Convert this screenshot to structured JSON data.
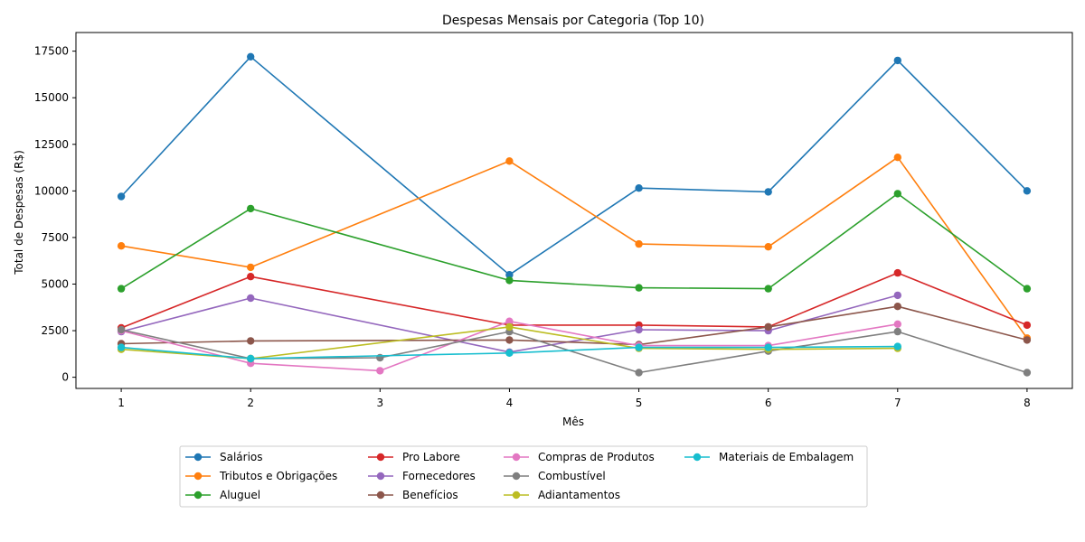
{
  "chart_data": {
    "type": "line",
    "title": "Despesas Mensais por Categoria (Top 10)",
    "xlabel": "Mês",
    "ylabel": "Total de Despesas (R$)",
    "xlim": [
      0.65,
      8.35
    ],
    "ylim": [
      -600,
      18500
    ],
    "xticks": [
      1,
      2,
      3,
      4,
      5,
      6,
      7,
      8
    ],
    "yticks": [
      0,
      2500,
      5000,
      7500,
      10000,
      12500,
      15000,
      17500
    ],
    "grid": false,
    "legend_placement": "below",
    "series": [
      {
        "name": "Salários",
        "color": "#1f77b4",
        "x": [
          1,
          2,
          4,
          5,
          6,
          7,
          8
        ],
        "values": [
          9700,
          17200,
          5500,
          10150,
          9950,
          17000,
          10000
        ]
      },
      {
        "name": "Tributos e Obrigações",
        "color": "#ff7f0e",
        "x": [
          1,
          2,
          4,
          5,
          6,
          7,
          8
        ],
        "values": [
          7050,
          5900,
          11600,
          7150,
          7000,
          11800,
          2100
        ]
      },
      {
        "name": "Aluguel",
        "color": "#2ca02c",
        "x": [
          1,
          2,
          4,
          5,
          6,
          7,
          8
        ],
        "values": [
          4750,
          9050,
          5200,
          4800,
          4750,
          9850,
          4750
        ]
      },
      {
        "name": "Pro Labore",
        "color": "#d62728",
        "x": [
          1,
          2,
          4,
          5,
          6,
          7,
          8
        ],
        "values": [
          2650,
          5400,
          2800,
          2800,
          2700,
          5600,
          2800
        ]
      },
      {
        "name": "Fornecedores",
        "color": "#9467bd",
        "x": [
          1,
          2,
          4,
          5,
          6,
          7
        ],
        "values": [
          2450,
          4250,
          1350,
          2550,
          2500,
          4400
        ]
      },
      {
        "name": "Benefícios",
        "color": "#8c564b",
        "x": [
          1,
          2,
          4,
          5,
          6,
          7,
          8
        ],
        "values": [
          1800,
          1950,
          2000,
          1750,
          2700,
          3800,
          2000
        ]
      },
      {
        "name": "Compras de Produtos",
        "color": "#e377c2",
        "x": [
          1,
          2,
          3,
          4,
          5,
          6,
          7
        ],
        "values": [
          2500,
          750,
          350,
          3000,
          1700,
          1700,
          2850
        ]
      },
      {
        "name": "Combustível",
        "color": "#7f7f7f",
        "x": [
          1,
          2,
          3,
          4,
          5,
          6,
          7,
          8
        ],
        "values": [
          2550,
          1000,
          1050,
          2450,
          250,
          1400,
          2450,
          250
        ]
      },
      {
        "name": "Adiantamentos",
        "color": "#bcbd22",
        "x": [
          1,
          2,
          4,
          5,
          6,
          7
        ],
        "values": [
          1500,
          1000,
          2700,
          1550,
          1500,
          1550
        ]
      },
      {
        "name": "Materiais de Embalagem",
        "color": "#17becf",
        "x": [
          1,
          2,
          4,
          5,
          6,
          7
        ],
        "values": [
          1600,
          1000,
          1300,
          1600,
          1600,
          1650
        ]
      }
    ]
  }
}
